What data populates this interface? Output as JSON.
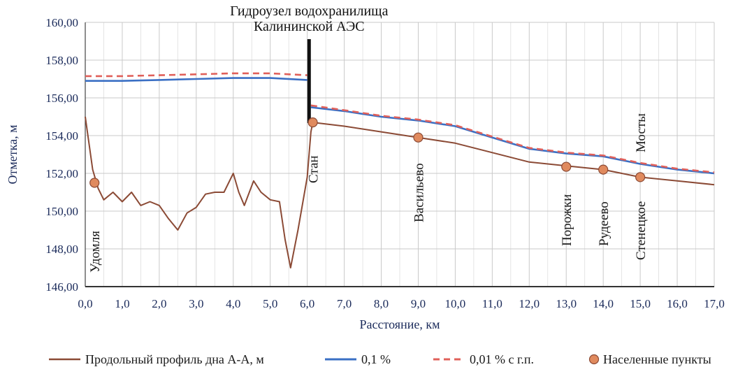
{
  "chart_data": {
    "type": "line",
    "xlabel": "Расстояние, км",
    "ylabel": "Отметка, м",
    "xlim": [
      0,
      17
    ],
    "ylim": [
      146,
      160
    ],
    "x_ticks": [
      "0,0",
      "1,0",
      "2,0",
      "3,0",
      "4,0",
      "5,0",
      "6,0",
      "7,0",
      "8,0",
      "9,0",
      "10,0",
      "11,0",
      "12,0",
      "13,0",
      "14,0",
      "15,0",
      "16,0",
      "17,0"
    ],
    "y_ticks": [
      "146,00",
      "148,00",
      "150,00",
      "152,00",
      "154,00",
      "156,00",
      "158,00",
      "160,00"
    ],
    "grid": true,
    "legend_position": "bottom",
    "annotation": {
      "lines": [
        "Гидроузел водохранилища",
        "Калининской АЭС"
      ],
      "x": 6.05
    },
    "series": [
      {
        "name": "Продольный профиль дна А-А, м",
        "color": "#8b4a35",
        "style": "solid",
        "points": [
          [
            0.0,
            155.0
          ],
          [
            0.1,
            153.6
          ],
          [
            0.2,
            152.2
          ],
          [
            0.35,
            151.2
          ],
          [
            0.5,
            150.6
          ],
          [
            0.75,
            151.0
          ],
          [
            1.0,
            150.5
          ],
          [
            1.25,
            151.0
          ],
          [
            1.5,
            150.3
          ],
          [
            1.75,
            150.5
          ],
          [
            2.0,
            150.3
          ],
          [
            2.25,
            149.6
          ],
          [
            2.5,
            149.0
          ],
          [
            2.75,
            149.9
          ],
          [
            3.0,
            150.2
          ],
          [
            3.25,
            150.9
          ],
          [
            3.5,
            151.0
          ],
          [
            3.75,
            151.0
          ],
          [
            4.0,
            152.0
          ],
          [
            4.15,
            151.0
          ],
          [
            4.3,
            150.3
          ],
          [
            4.55,
            151.6
          ],
          [
            4.75,
            151.0
          ],
          [
            5.0,
            150.6
          ],
          [
            5.25,
            150.5
          ],
          [
            5.4,
            148.5
          ],
          [
            5.55,
            147.0
          ],
          [
            5.75,
            149.0
          ],
          [
            6.0,
            151.8
          ],
          [
            6.1,
            154.2
          ],
          [
            6.15,
            154.7
          ],
          [
            7.0,
            154.5
          ],
          [
            8.0,
            154.2
          ],
          [
            9.0,
            153.9
          ],
          [
            10.0,
            153.6
          ],
          [
            11.0,
            153.1
          ],
          [
            12.0,
            152.6
          ],
          [
            13.0,
            152.4
          ],
          [
            14.0,
            152.2
          ],
          [
            15.0,
            151.8
          ],
          [
            16.0,
            151.6
          ],
          [
            17.0,
            151.4
          ]
        ]
      },
      {
        "name": "0,1 %",
        "color": "#3a6fc4",
        "style": "solid",
        "segments": [
          [
            [
              0.0,
              156.9
            ],
            [
              1.0,
              156.9
            ],
            [
              2.0,
              156.95
            ],
            [
              3.0,
              157.0
            ],
            [
              4.0,
              157.05
            ],
            [
              5.0,
              157.05
            ],
            [
              6.0,
              156.95
            ]
          ],
          [
            [
              6.1,
              155.5
            ],
            [
              7.0,
              155.3
            ],
            [
              8.0,
              155.0
            ],
            [
              9.0,
              154.8
            ],
            [
              10.0,
              154.5
            ],
            [
              11.0,
              153.9
            ],
            [
              12.0,
              153.3
            ],
            [
              13.0,
              153.05
            ],
            [
              14.0,
              152.9
            ],
            [
              15.0,
              152.5
            ],
            [
              16.0,
              152.2
            ],
            [
              17.0,
              152.0
            ]
          ]
        ]
      },
      {
        "name": "0,01 % с г.п.",
        "color": "#e0605a",
        "style": "dashed",
        "segments": [
          [
            [
              0.0,
              157.15
            ],
            [
              1.0,
              157.15
            ],
            [
              2.0,
              157.2
            ],
            [
              3.0,
              157.25
            ],
            [
              4.0,
              157.3
            ],
            [
              5.0,
              157.3
            ],
            [
              6.0,
              157.2
            ]
          ],
          [
            [
              6.1,
              155.6
            ],
            [
              7.0,
              155.35
            ],
            [
              8.0,
              155.05
            ],
            [
              9.0,
              154.85
            ],
            [
              10.0,
              154.55
            ],
            [
              11.0,
              153.95
            ],
            [
              12.0,
              153.35
            ],
            [
              13.0,
              153.1
            ],
            [
              14.0,
              152.95
            ],
            [
              15.0,
              152.55
            ],
            [
              16.0,
              152.25
            ],
            [
              17.0,
              152.05
            ]
          ]
        ]
      }
    ],
    "settlements": {
      "name": "Населенные пункты",
      "color": "#e08a5e",
      "points": [
        {
          "label": "Удомля",
          "x": 0.25,
          "y": 151.5
        },
        {
          "label": "Стан",
          "x": 6.15,
          "y": 154.7
        },
        {
          "label": "Васильево",
          "x": 9.0,
          "y": 153.9
        },
        {
          "label": "Порожки",
          "x": 13.0,
          "y": 152.35
        },
        {
          "label": "Рудеево",
          "x": 14.0,
          "y": 152.2
        },
        {
          "label": "Стенецкое",
          "x": 15.0,
          "y": 151.8
        }
      ]
    },
    "extra_labels": [
      {
        "label": "Мосты",
        "x": 15.0
      }
    ]
  }
}
